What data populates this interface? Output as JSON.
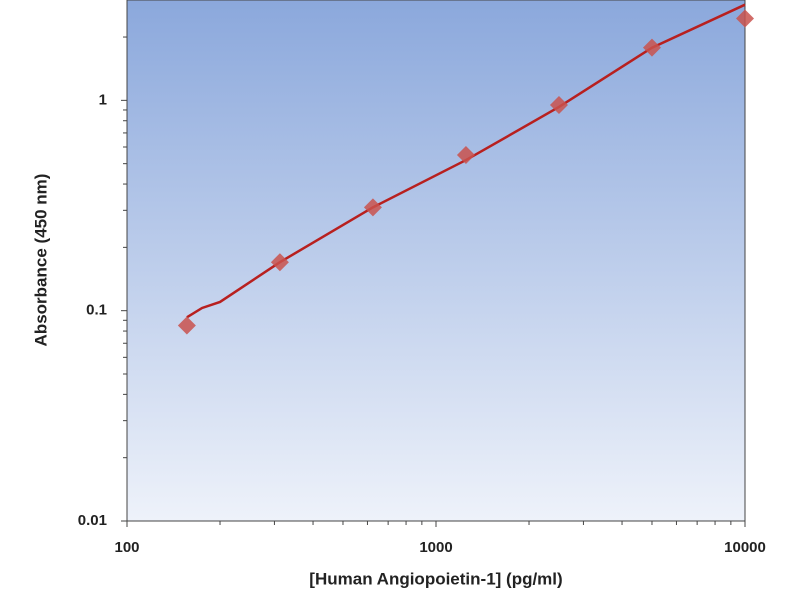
{
  "chart_data": {
    "type": "scatter",
    "x_label": "[Human Angiopoietin-1] (pg/ml)",
    "y_label": "Absorbance (450 nm)",
    "x": [
      156.25,
      312.5,
      625,
      1250,
      2500,
      5000,
      10000
    ],
    "values": [
      0.085,
      0.17,
      0.31,
      0.55,
      0.95,
      1.78,
      2.45
    ],
    "color": "#c9524d",
    "fit": {
      "x": [
        156.25,
        175,
        200,
        312.5,
        625,
        1250,
        2500,
        5000,
        10000
      ],
      "values": [
        0.093,
        0.103,
        0.11,
        0.17,
        0.31,
        0.52,
        0.93,
        1.78,
        2.85
      ],
      "color": "#b8201f"
    },
    "xlim": [
      100,
      10000
    ],
    "ylim": [
      0.01,
      3
    ],
    "log_x": true,
    "log_y": true,
    "xticks": [
      100,
      1000,
      10000
    ],
    "xminorticks": [
      200,
      300,
      400,
      500,
      600,
      700,
      800,
      900,
      2000,
      3000,
      4000,
      5000,
      6000,
      7000,
      8000,
      9000
    ],
    "yticks": [
      0.01,
      0.1,
      1
    ],
    "yminorticks": [
      0.02,
      0.03,
      0.04,
      0.05,
      0.06,
      0.07,
      0.08,
      0.09,
      0.2,
      0.3,
      0.4,
      0.5,
      0.6,
      0.7,
      0.8,
      0.9,
      2
    ]
  }
}
